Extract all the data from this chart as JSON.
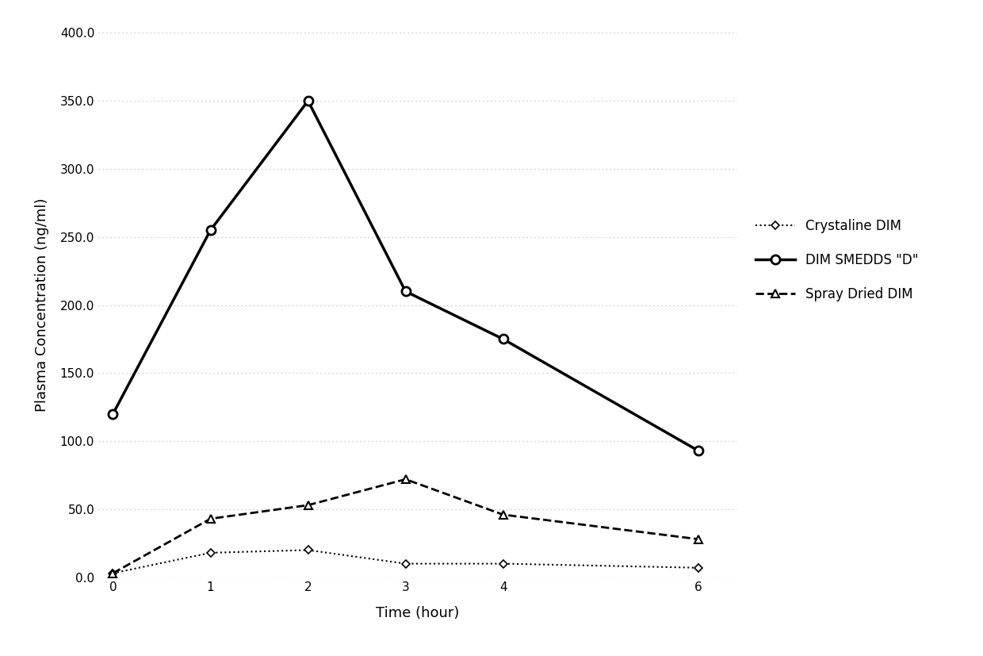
{
  "time": [
    0,
    1,
    2,
    3,
    4,
    6
  ],
  "crystaline_dim": [
    3,
    18,
    20,
    10,
    10,
    7
  ],
  "dim_smedds": [
    120,
    255,
    350,
    210,
    175,
    93
  ],
  "spray_dried_dim": [
    3,
    43,
    53,
    72,
    46,
    28
  ],
  "xlabel": "Time (hour)",
  "ylabel": "Plasma Concentration (ng/ml)",
  "ylim": [
    0,
    400
  ],
  "yticks": [
    0.0,
    50.0,
    100.0,
    150.0,
    200.0,
    250.0,
    300.0,
    350.0,
    400.0
  ],
  "xticks": [
    0,
    1,
    2,
    3,
    4,
    6
  ],
  "legend_crystaline": "Crystaline DIM",
  "legend_smedds": "DIM SMEDDS \"D\"",
  "legend_spray": "Spray Dried DIM",
  "background_color": "#ffffff",
  "line_color": "#000000",
  "grid_color": "#bbbbbb"
}
